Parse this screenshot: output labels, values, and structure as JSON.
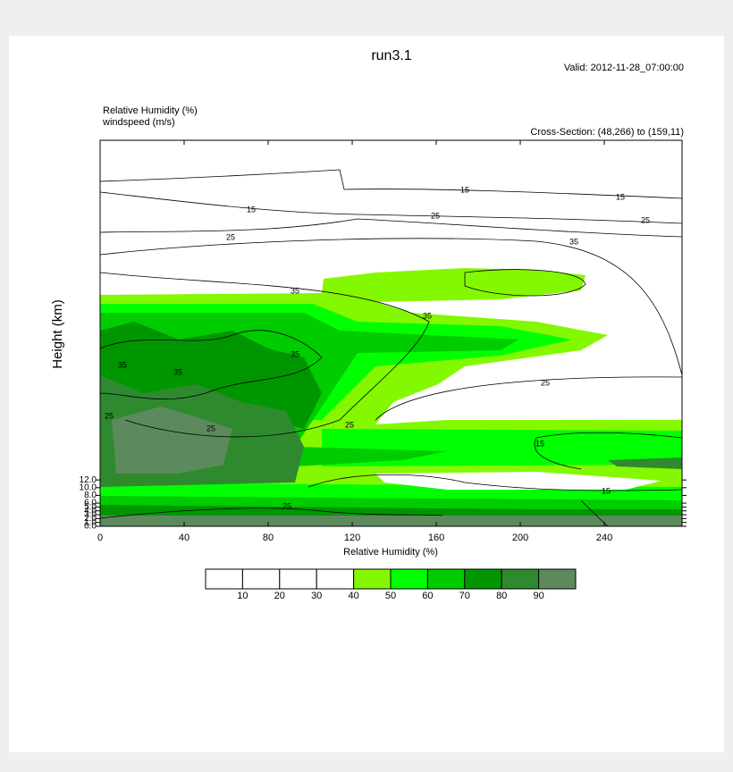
{
  "chart_data": {
    "type": "contour",
    "title": "run3.1",
    "valid": "Valid: 2012-11-28_07:00:00",
    "field_labels": [
      "Relative Humidity   (%)",
      "windspeed   (m/s)"
    ],
    "cross_section": "Cross-Section: (48,266) to (159,11)",
    "y_label": "Height (km)",
    "colorbar_label": "Relative Humidity   (%)",
    "xlim": [
      0,
      277
    ],
    "xticks": [
      0,
      40,
      80,
      120,
      160,
      200,
      240
    ],
    "ylim": [
      0,
      100
    ],
    "yticks": [
      {
        "value": 0,
        "label": "0.0"
      },
      {
        "value": 1,
        "label": "1.0"
      },
      {
        "value": 2,
        "label": "2.0"
      },
      {
        "value": 3,
        "label": "3.0"
      },
      {
        "value": 4,
        "label": "4.0"
      },
      {
        "value": 5,
        "label": "5.0"
      },
      {
        "value": 6,
        "label": "6.0"
      },
      {
        "value": 8,
        "label": "8.0"
      },
      {
        "value": 10,
        "label": "10.0"
      },
      {
        "value": 12,
        "label": "12.0"
      }
    ],
    "levels": [
      10,
      20,
      30,
      40,
      50,
      60,
      70,
      80,
      90
    ],
    "fill_colors": [
      "#ffffff",
      "#ffffff",
      "#ffffff",
      "#ffffff",
      "#84f800",
      "#00ff00",
      "#00cc00",
      "#009600",
      "#2f8a2f",
      "#5c8a5c"
    ],
    "contour_labels": [
      15,
      15,
      15,
      25,
      25,
      25,
      35,
      35,
      35,
      35,
      35,
      35,
      25,
      25,
      25,
      25,
      15,
      15,
      25
    ]
  }
}
